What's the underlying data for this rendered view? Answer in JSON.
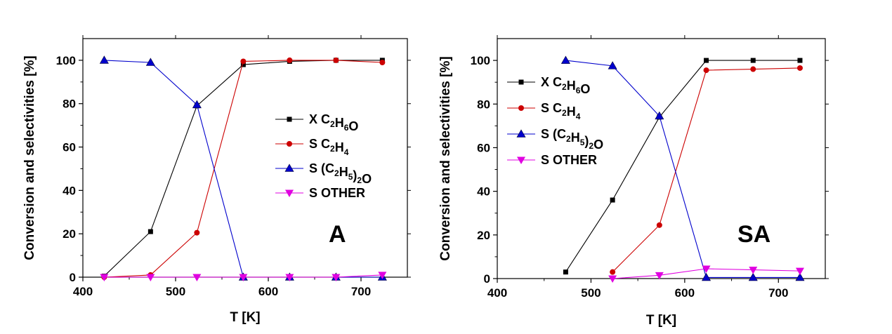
{
  "chart_data": [
    {
      "type": "line",
      "panel_label": "A",
      "xlabel": "T [K]",
      "ylabel": "Conversion and selectivities [%]",
      "xlim": [
        400,
        750
      ],
      "ylim": [
        0,
        110
      ],
      "xticks": [
        "400",
        "500",
        "600",
        "700"
      ],
      "yticks": [
        "0",
        "20",
        "40",
        "60",
        "80",
        "100"
      ],
      "legend_position": "center-right",
      "series": [
        {
          "name": "X C2H6O",
          "color": "#000000",
          "marker": "square",
          "x": [
            423,
            473,
            523,
            573,
            623,
            673,
            723
          ],
          "y": [
            0.5,
            21,
            79,
            98,
            99.5,
            100,
            100
          ]
        },
        {
          "name": "S C2H4",
          "color": "#cc0000",
          "marker": "circle",
          "x": [
            423,
            473,
            523,
            573,
            623,
            673,
            723
          ],
          "y": [
            0,
            1,
            20.5,
            99.5,
            100,
            100,
            99
          ]
        },
        {
          "name": "S (C2H5)2O",
          "color": "#0000cc",
          "marker": "triangle-up",
          "x": [
            423,
            473,
            523,
            573,
            623,
            673,
            723
          ],
          "y": [
            100,
            99,
            79.5,
            0,
            0,
            0,
            0
          ]
        },
        {
          "name": "S OTHER",
          "color": "#e000e0",
          "marker": "triangle-down",
          "x": [
            423,
            473,
            523,
            573,
            623,
            673,
            723
          ],
          "y": [
            0,
            0,
            0,
            0,
            0,
            0,
            1
          ]
        }
      ]
    },
    {
      "type": "line",
      "panel_label": "SA",
      "xlabel": "T [K]",
      "ylabel": "Conversion and selectivities [%]",
      "xlim": [
        400,
        750
      ],
      "ylim": [
        0,
        110
      ],
      "xticks": [
        "400",
        "500",
        "600",
        "700"
      ],
      "yticks": [
        "0",
        "20",
        "40",
        "60",
        "80",
        "100"
      ],
      "legend_position": "top-left",
      "series": [
        {
          "name": "X C2H6O",
          "color": "#000000",
          "marker": "square",
          "x": [
            473,
            523,
            573,
            623,
            673,
            723
          ],
          "y": [
            3,
            36,
            74,
            100,
            100,
            100
          ]
        },
        {
          "name": "S C2H4",
          "color": "#cc0000",
          "marker": "circle",
          "x": [
            523,
            573,
            623,
            673,
            723
          ],
          "y": [
            3,
            24.5,
            95.5,
            96,
            96.5
          ]
        },
        {
          "name": "S (C2H5)2O",
          "color": "#0000cc",
          "marker": "triangle-up",
          "x": [
            473,
            523,
            573,
            623,
            673,
            723
          ],
          "y": [
            100,
            97.5,
            74.5,
            0.5,
            0.5,
            0.5
          ]
        },
        {
          "name": "S OTHER",
          "color": "#e000e0",
          "marker": "triangle-down",
          "x": [
            523,
            573,
            623,
            673,
            723
          ],
          "y": [
            0,
            1.5,
            4.5,
            4,
            3.5
          ]
        }
      ]
    }
  ]
}
